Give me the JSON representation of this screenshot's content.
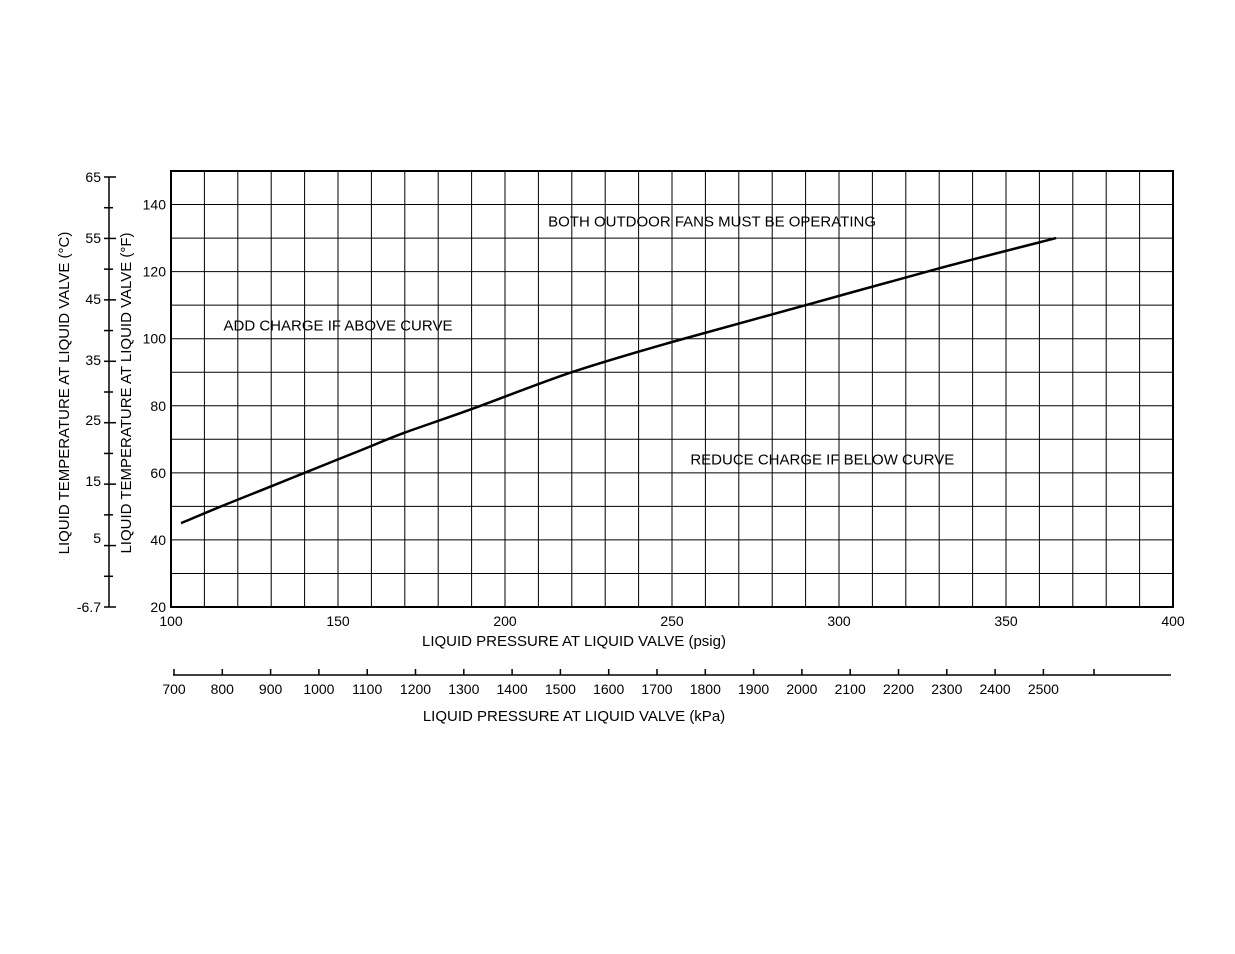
{
  "chart_data": {
    "type": "line",
    "title": "",
    "xlabel": "LIQUID PRESSURE AT LIQUID VALVE (psig)",
    "ylabel": "LIQUID TEMPERATURE AT LIQUID VALVE (°F)",
    "xlim": [
      100,
      400
    ],
    "ylim": [
      20,
      150
    ],
    "x_ticks": [
      100,
      150,
      200,
      250,
      300,
      350,
      400
    ],
    "y_ticks": [
      20,
      40,
      60,
      80,
      100,
      120,
      140
    ],
    "grid": true,
    "series": [
      {
        "x": [
          103,
          115,
          130,
          140,
          150,
          160,
          170,
          190,
          220,
          250,
          290,
          330,
          365
        ],
        "y": [
          45,
          50,
          56,
          60,
          64,
          68,
          72,
          79,
          90,
          99,
          110,
          121,
          130
        ]
      }
    ],
    "secondary_y": {
      "label": "LIQUID TEMPERATURE AT LIQUID VALVE (°C)",
      "ticks": [
        "65",
        "55",
        "45",
        "35",
        "25",
        "15",
        "5",
        "-6.7"
      ]
    },
    "secondary_x": {
      "label": "LIQUID PRESSURE AT LIQUID VALVE (kPa)",
      "ticks": [
        "700",
        "800",
        "900",
        "1000",
        "1100",
        "1200",
        "1300",
        "1400",
        "1500",
        "1600",
        "1700",
        "1800",
        "1900",
        "2000",
        "2100",
        "2200",
        "2300",
        "2400",
        "2500"
      ]
    },
    "annotations": [
      {
        "text": "BOTH OUTDOOR FANS MUST BE OPERATING",
        "x": 262,
        "y": 135
      },
      {
        "text": "ADD CHARGE IF ABOVE CURVE",
        "x": 150,
        "y": 104
      },
      {
        "text": "REDUCE CHARGE IF BELOW CURVE",
        "x": 295,
        "y": 64
      }
    ]
  }
}
